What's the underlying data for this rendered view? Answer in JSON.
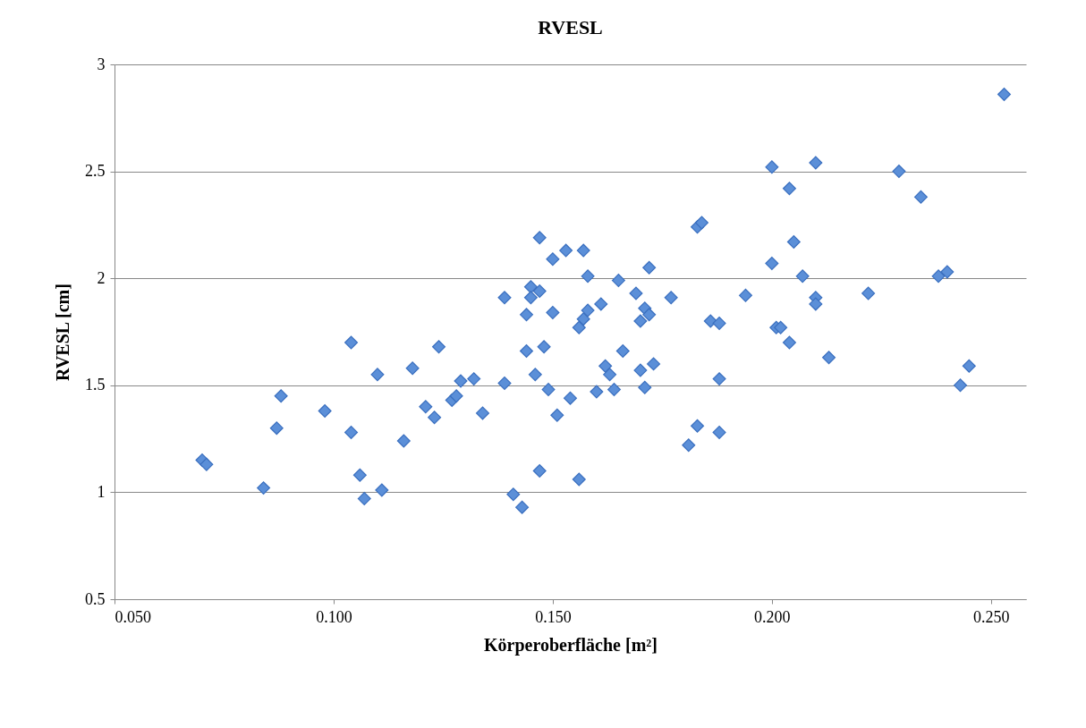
{
  "chart_data": {
    "type": "scatter",
    "title": "RVESL",
    "xlabel": "Körperoberfläche [m²]",
    "ylabel": "RVESL [cm]",
    "x": [
      0.07,
      0.071,
      0.084,
      0.087,
      0.088,
      0.098,
      0.104,
      0.104,
      0.106,
      0.107,
      0.11,
      0.111,
      0.116,
      0.118,
      0.121,
      0.123,
      0.124,
      0.127,
      0.128,
      0.129,
      0.132,
      0.134,
      0.139,
      0.139,
      0.141,
      0.143,
      0.144,
      0.144,
      0.145,
      0.145,
      0.146,
      0.147,
      0.147,
      0.147,
      0.148,
      0.149,
      0.15,
      0.15,
      0.151,
      0.153,
      0.154,
      0.156,
      0.156,
      0.157,
      0.157,
      0.158,
      0.158,
      0.16,
      0.161,
      0.162,
      0.163,
      0.164,
      0.165,
      0.166,
      0.169,
      0.17,
      0.17,
      0.171,
      0.171,
      0.172,
      0.172,
      0.173,
      0.177,
      0.181,
      0.183,
      0.183,
      0.184,
      0.186,
      0.188,
      0.188,
      0.188,
      0.194,
      0.2,
      0.2,
      0.201,
      0.202,
      0.204,
      0.204,
      0.205,
      0.207,
      0.21,
      0.21,
      0.21,
      0.213,
      0.222,
      0.229,
      0.234,
      0.238,
      0.24,
      0.243,
      0.245,
      0.253
    ],
    "series": [
      {
        "color": "#5b8fd8",
        "values": [
          1.15,
          1.13,
          1.02,
          1.3,
          1.45,
          1.38,
          1.7,
          1.28,
          1.08,
          0.97,
          1.55,
          1.01,
          1.24,
          1.58,
          1.4,
          1.35,
          1.68,
          1.43,
          1.45,
          1.52,
          1.53,
          1.37,
          1.91,
          1.51,
          0.99,
          0.93,
          1.83,
          1.66,
          1.96,
          1.91,
          1.55,
          1.94,
          2.19,
          1.1,
          1.68,
          1.48,
          2.09,
          1.84,
          1.36,
          2.13,
          1.44,
          1.77,
          1.06,
          2.13,
          1.81,
          1.85,
          2.01,
          1.47,
          1.88,
          1.59,
          1.55,
          1.48,
          1.99,
          1.66,
          1.93,
          1.57,
          1.8,
          1.86,
          1.49,
          1.83,
          2.05,
          1.6,
          1.91,
          1.22,
          2.24,
          1.31,
          2.26,
          1.8,
          1.79,
          1.53,
          1.28,
          1.92,
          2.52,
          2.07,
          1.77,
          1.77,
          2.42,
          1.7,
          2.17,
          2.01,
          2.54,
          1.91,
          1.88,
          1.63,
          1.93,
          2.5,
          2.38,
          2.01,
          2.03,
          1.5,
          1.59,
          2.86
        ]
      }
    ],
    "xlim": [
      0.05,
      0.258
    ],
    "xticks": [
      {
        "value": 0.05,
        "label": "0.050"
      },
      {
        "value": 0.1,
        "label": "0.100"
      },
      {
        "value": 0.15,
        "label": "0.150"
      },
      {
        "value": 0.2,
        "label": "0.200"
      },
      {
        "value": 0.25,
        "label": "0.250"
      }
    ],
    "ylim": [
      0.5,
      3
    ],
    "yticks": [
      0.5,
      1,
      1.5,
      2,
      2.5,
      3
    ],
    "grid": "y",
    "marker": "diamond"
  }
}
